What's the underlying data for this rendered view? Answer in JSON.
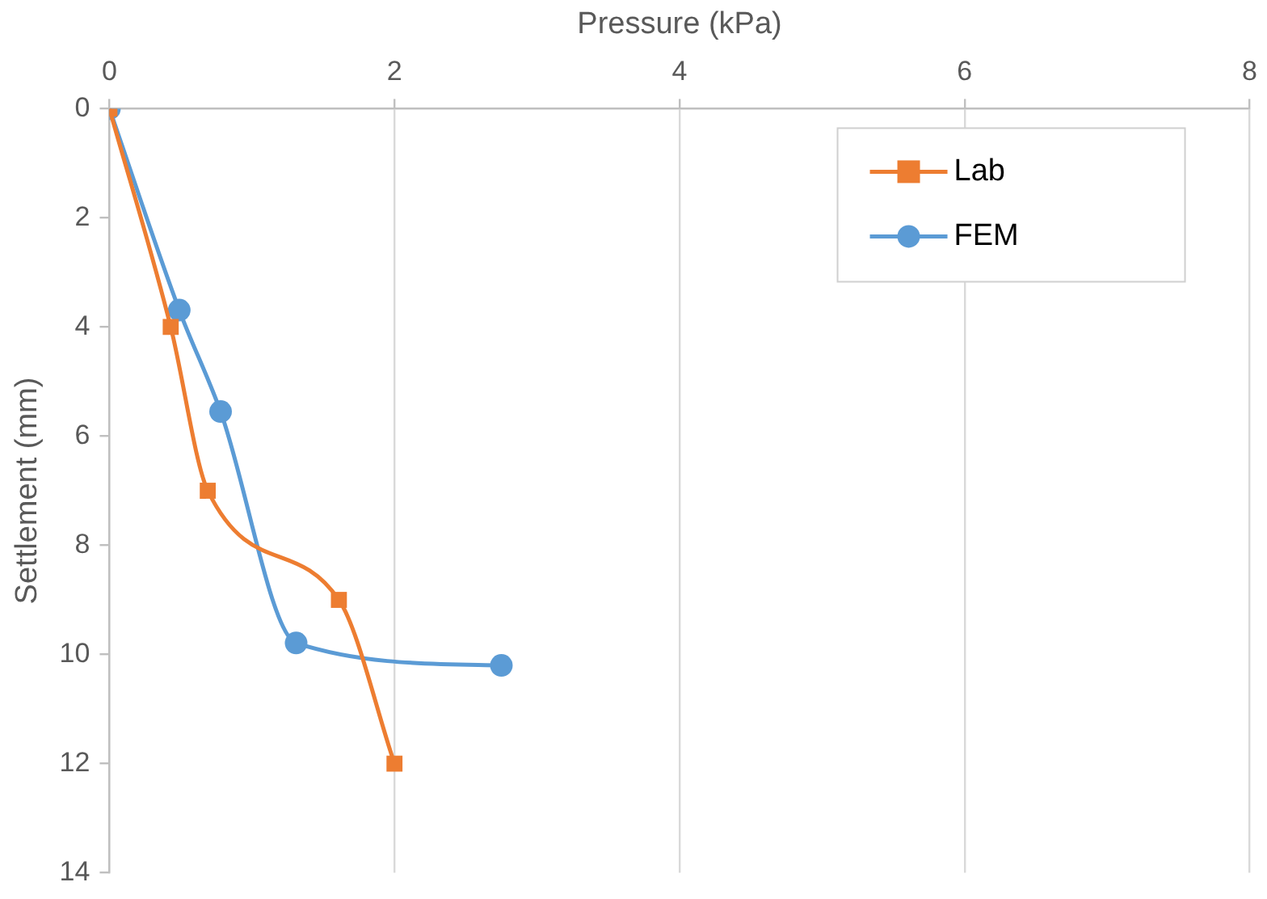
{
  "chart_data": {
    "type": "line",
    "xlabel": "Pressure (kPa)",
    "ylabel": "Settlement (mm)",
    "xlim": [
      0,
      8
    ],
    "xticks": [
      0,
      2,
      4,
      6,
      8
    ],
    "ylim": [
      14,
      0
    ],
    "yticks": [
      0,
      2,
      4,
      6,
      8,
      10,
      12,
      14
    ],
    "grid": "x",
    "legend": "top right",
    "series": [
      {
        "name": "Lab",
        "color": "#ed7d31",
        "marker": "square",
        "x": [
          0,
          0.43,
          0.69,
          1.61,
          2.0
        ],
        "values": [
          0,
          4,
          7,
          9,
          12
        ]
      },
      {
        "name": "FEM",
        "color": "#5b9bd5",
        "marker": "circle",
        "x": [
          0,
          0.49,
          0.78,
          1.31,
          2.75
        ],
        "values": [
          0,
          3.69,
          5.55,
          9.79,
          10.2
        ]
      }
    ]
  }
}
